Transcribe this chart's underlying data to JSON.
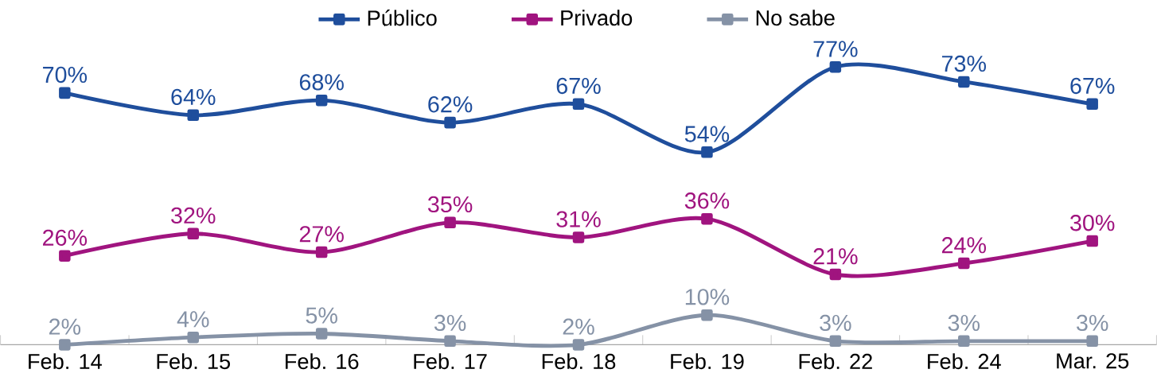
{
  "chart_data": {
    "type": "line",
    "categories": [
      "Feb. 14",
      "Feb. 15",
      "Feb. 16",
      "Feb. 17",
      "Feb. 18",
      "Feb. 19",
      "Feb. 22",
      "Feb. 24",
      "Mar. 25"
    ],
    "series": [
      {
        "name": "Público",
        "color": "#1f4e9c",
        "values": [
          70,
          64,
          68,
          62,
          67,
          54,
          77,
          73,
          67
        ],
        "value_labels": [
          "70%",
          "64%",
          "68%",
          "62%",
          "67%",
          "54%",
          "77%",
          "73%",
          "67%"
        ]
      },
      {
        "name": "Privado",
        "color": "#a0147f",
        "values": [
          26,
          32,
          27,
          35,
          31,
          36,
          21,
          24,
          30
        ],
        "value_labels": [
          "26%",
          "32%",
          "27%",
          "35%",
          "31%",
          "36%",
          "21%",
          "24%",
          "30%"
        ]
      },
      {
        "name": "No sabe",
        "color": "#8592a6",
        "values": [
          2,
          4,
          5,
          3,
          2,
          10,
          3,
          3,
          3
        ],
        "value_labels": [
          "2%",
          "4%",
          "5%",
          "3%",
          "2%",
          "10%",
          "3%",
          "3%",
          "3%"
        ]
      }
    ],
    "tick_labels": "x",
    "legend": "top",
    "marker": "square",
    "line_style": "solid",
    "grid": false
  }
}
